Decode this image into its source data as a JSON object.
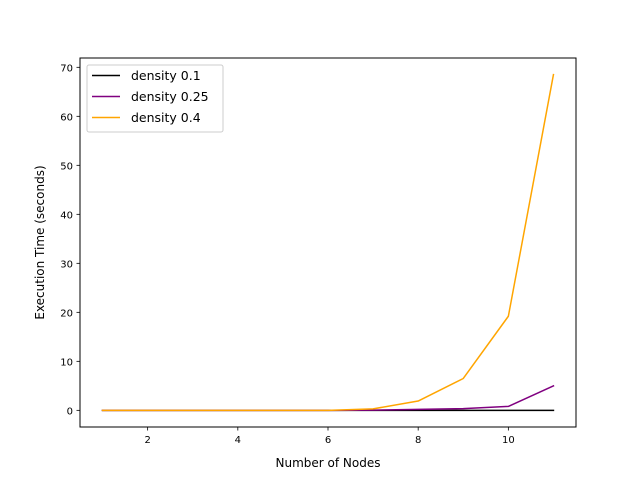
{
  "chart_data": {
    "type": "line",
    "title": "",
    "xlabel": "Number of Nodes",
    "ylabel": "Execution Time (seconds)",
    "xlim": [
      0.5,
      11.5
    ],
    "ylim": [
      -3.4,
      71.9
    ],
    "xticks": [
      2,
      4,
      6,
      8,
      10
    ],
    "yticks": [
      0,
      10,
      20,
      30,
      40,
      50,
      60,
      70
    ],
    "grid": false,
    "legend_position": "upper-left",
    "x": [
      1,
      2,
      3,
      4,
      5,
      6,
      7,
      8,
      9,
      10,
      11
    ],
    "series": [
      {
        "name": "density 0.1",
        "color": "#000000",
        "values": [
          0,
          0,
          0,
          0,
          0,
          0,
          0,
          0,
          0,
          0,
          0
        ]
      },
      {
        "name": "density 0.25",
        "color": "#800080",
        "values": [
          0,
          0,
          0,
          0,
          0,
          0,
          0.05,
          0.2,
          0.35,
          0.8,
          5.0
        ]
      },
      {
        "name": "density 0.4",
        "color": "#ffa500",
        "values": [
          0,
          0,
          0,
          0,
          0,
          0,
          0.3,
          1.9,
          6.5,
          19.2,
          68.5
        ]
      }
    ]
  }
}
